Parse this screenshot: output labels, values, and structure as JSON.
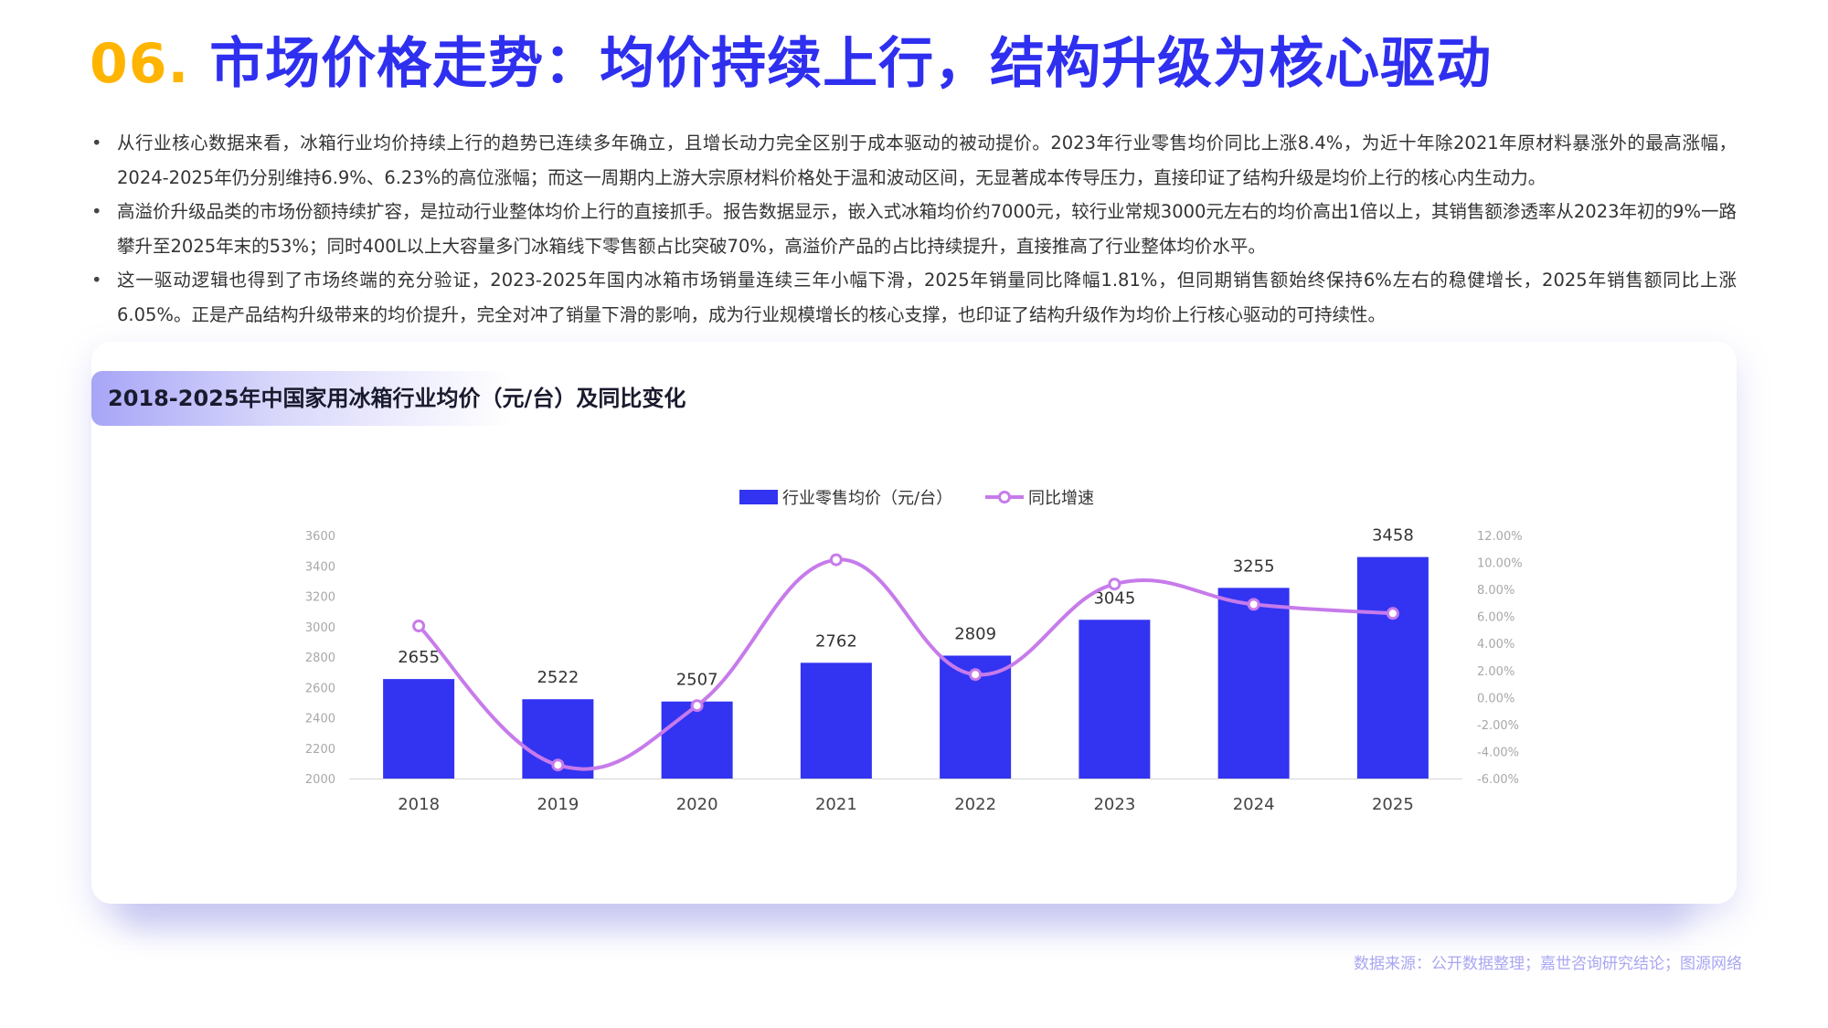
{
  "header": {
    "number": "06.",
    "title": "市场价格走势：均价持续上行，结构升级为核心驱动"
  },
  "bullets": [
    "从行业核心数据来看，冰箱行业均价持续上行的趋势已连续多年确立，且增长动力完全区别于成本驱动的被动提价。2023年行业零售均价同比上涨8.4%，为近十年除2021年原材料暴涨外的最高涨幅，2024-2025年仍分别维持6.9%、6.23%的高位涨幅；而这一周期内上游大宗原材料价格处于温和波动区间，无显著成本传导压力，直接印证了结构升级是均价上行的核心内生动力。",
    "高溢价升级品类的市场份额持续扩容，是拉动行业整体均价上行的直接抓手。报告数据显示，嵌入式冰箱均价约7000元，较行业常规3000元左右的均价高出1倍以上，其销售额渗透率从2023年初的9%一路攀升至2025年末的53%；同时400L以上大容量多门冰箱线下零售额占比突破70%，高溢价产品的占比持续提升，直接推高了行业整体均价水平。",
    "这一驱动逻辑也得到了市场终端的充分验证，2023-2025年国内冰箱市场销量连续三年小幅下滑，2025年销量同比降幅1.81%，但同期销售额始终保持6%左右的稳健增长，2025年销售额同比上涨6.05%。正是产品结构升级带来的均价提升，完全对冲了销量下滑的影响，成为行业规模增长的核心支撑，也印证了结构升级作为均价上行核心驱动的可持续性。"
  ],
  "chart_title": "2018-2025年中国家用冰箱行业均价（元/台）及同比变化",
  "chart_data": {
    "type": "bar",
    "categories": [
      "2018",
      "2019",
      "2020",
      "2021",
      "2022",
      "2023",
      "2024",
      "2025"
    ],
    "series": [
      {
        "name": "行业零售均价（元/台）",
        "type": "bar",
        "axis": "left",
        "values": [
          2655,
          2522,
          2507,
          2762,
          2809,
          3045,
          3255,
          3458
        ],
        "labels": [
          "2655",
          "2522",
          "2507",
          "2762",
          "2809",
          "3045",
          "3255",
          "3458"
        ]
      },
      {
        "name": "同比增速",
        "type": "line",
        "axis": "right",
        "values": [
          5.3,
          -5.0,
          -0.6,
          10.2,
          1.7,
          8.4,
          6.9,
          6.23
        ]
      }
    ],
    "left_axis": {
      "ylim": [
        2000,
        3600
      ],
      "ticks": [
        "2000",
        "2200",
        "2400",
        "2600",
        "2800",
        "3000",
        "3200",
        "3400",
        "3600"
      ]
    },
    "right_axis": {
      "ylim": [
        -6,
        12
      ],
      "ticks": [
        "-6.00%",
        "-4.00%",
        "-2.00%",
        "0.00%",
        "2.00%",
        "4.00%",
        "6.00%",
        "8.00%",
        "10.00%",
        "12.00%"
      ]
    },
    "legend_position": "top-center",
    "grid": false,
    "colors": {
      "bar": "#3333F2",
      "line": "#C77BEA"
    }
  },
  "source": "数据来源：公开数据整理；嘉世咨询研究结论；图源网络"
}
